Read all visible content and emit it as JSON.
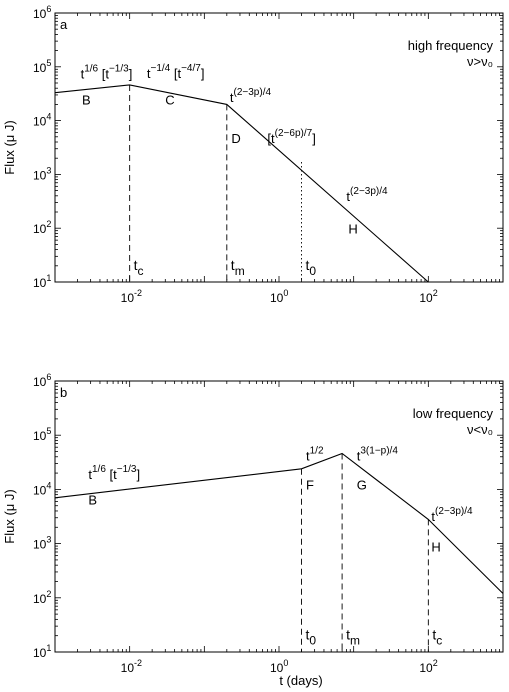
{
  "xlabel": "t (days)",
  "chart_data": [
    {
      "type": "line",
      "panel_letter": "a",
      "legend_lines": [
        "high frequency",
        "ν>ν₀"
      ],
      "ylabel": "Flux (μ J)",
      "xscale": "log",
      "yscale": "log",
      "xlim": [
        0.001,
        1000
      ],
      "ylim": [
        10,
        1000000
      ],
      "x_ticks": [
        {
          "v": 0.01,
          "base": "10",
          "exp": "-2"
        },
        {
          "v": 1,
          "base": "10",
          "exp": "0"
        },
        {
          "v": 100,
          "base": "10",
          "exp": "2"
        }
      ],
      "y_ticks": [
        {
          "v": 10,
          "exp": "1"
        },
        {
          "v": 100,
          "exp": "2"
        },
        {
          "v": 1000,
          "exp": "3"
        },
        {
          "v": 10000,
          "exp": "4"
        },
        {
          "v": 100000,
          "exp": "5"
        },
        {
          "v": 1000000,
          "exp": "6"
        }
      ],
      "series": [
        {
          "x": [
            0.001,
            0.01,
            0.2,
            100
          ],
          "y": [
            33000,
            46000,
            20000,
            10
          ]
        }
      ],
      "vlines": [
        {
          "x": 0.01,
          "y_top": 46000,
          "style": "dashed",
          "label_base": "t",
          "label_sub": "c",
          "label_y": 20
        },
        {
          "x": 0.2,
          "y_top": 20000,
          "style": "dashed",
          "label_base": "t",
          "label_sub": "m",
          "label_y": 20
        },
        {
          "x": 2,
          "y_top": 1700,
          "style": "dotted",
          "label_base": "t",
          "label_sub": "0",
          "label_y": 20
        }
      ],
      "annotations": [
        {
          "x": 0.0022,
          "y": 60000,
          "base": "t",
          "sup": "1/6",
          "extra": " [t",
          "extra_sup": "−1/3",
          "close": "]"
        },
        {
          "x": 0.0023,
          "y": 20000,
          "text": "B"
        },
        {
          "x": 0.017,
          "y": 62000,
          "base": "t",
          "sup": "−1/4",
          "extra": " [t",
          "extra_sup": "−4/7",
          "close": "]"
        },
        {
          "x": 0.03,
          "y": 20000,
          "text": "C"
        },
        {
          "x": 0.22,
          "y": 22000,
          "base": "t",
          "sup": "(2−3p)/4"
        },
        {
          "x": 0.23,
          "y": 3800,
          "text": "D"
        },
        {
          "x": 0.7,
          "y": 3800,
          "base": "[t",
          "sup": "(2−6p)/7",
          "close": "]"
        },
        {
          "x": 8,
          "y": 320,
          "base": "t",
          "sup": "(2−3p)/4"
        },
        {
          "x": 8.5,
          "y": 80,
          "text": "H"
        }
      ]
    },
    {
      "type": "line",
      "panel_letter": "b",
      "legend_lines": [
        "low frequency",
        "ν<ν₀"
      ],
      "ylabel": "Flux (μ J)",
      "xscale": "log",
      "yscale": "log",
      "xlim": [
        0.001,
        1000
      ],
      "ylim": [
        10,
        1000000
      ],
      "x_ticks": [
        {
          "v": 0.01,
          "base": "10",
          "exp": "-2"
        },
        {
          "v": 1,
          "base": "10",
          "exp": "0"
        },
        {
          "v": 100,
          "base": "10",
          "exp": "2"
        }
      ],
      "y_ticks": [
        {
          "v": 10,
          "exp": "1"
        },
        {
          "v": 100,
          "exp": "2"
        },
        {
          "v": 1000,
          "exp": "3"
        },
        {
          "v": 10000,
          "exp": "4"
        },
        {
          "v": 100000,
          "exp": "5"
        },
        {
          "v": 1000000,
          "exp": "6"
        }
      ],
      "series": [
        {
          "x": [
            0.001,
            2,
            7,
            100,
            1000
          ],
          "y": [
            7000,
            24000,
            46000,
            2800,
            120
          ]
        }
      ],
      "vlines": [
        {
          "x": 2,
          "y_top": 24000,
          "style": "dashed",
          "label_base": "t",
          "label_sub": "0",
          "label_y": 20
        },
        {
          "x": 7,
          "y_top": 46000,
          "style": "dashed",
          "label_base": "t",
          "label_sub": "m",
          "label_y": 20
        },
        {
          "x": 100,
          "y_top": 2800,
          "style": "dashed",
          "label_base": "t",
          "label_sub": "c",
          "label_y": 20
        }
      ],
      "annotations": [
        {
          "x": 0.0028,
          "y": 15500,
          "base": "t",
          "sup": "1/6",
          "extra": " [t",
          "extra_sup": "−1/3",
          "close": "]"
        },
        {
          "x": 0.0028,
          "y": 5300,
          "text": "B"
        },
        {
          "x": 2.3,
          "y": 34000,
          "base": "t",
          "sup": "1/2"
        },
        {
          "x": 2.3,
          "y": 10000,
          "text": "F"
        },
        {
          "x": 11,
          "y": 34000,
          "base": "t",
          "sup": "3(1−p)/4"
        },
        {
          "x": 11,
          "y": 10000,
          "text": "G"
        },
        {
          "x": 110,
          "y": 2600,
          "base": "t",
          "sup": "(2−3p)/4"
        },
        {
          "x": 110,
          "y": 720,
          "text": "H"
        }
      ]
    }
  ]
}
